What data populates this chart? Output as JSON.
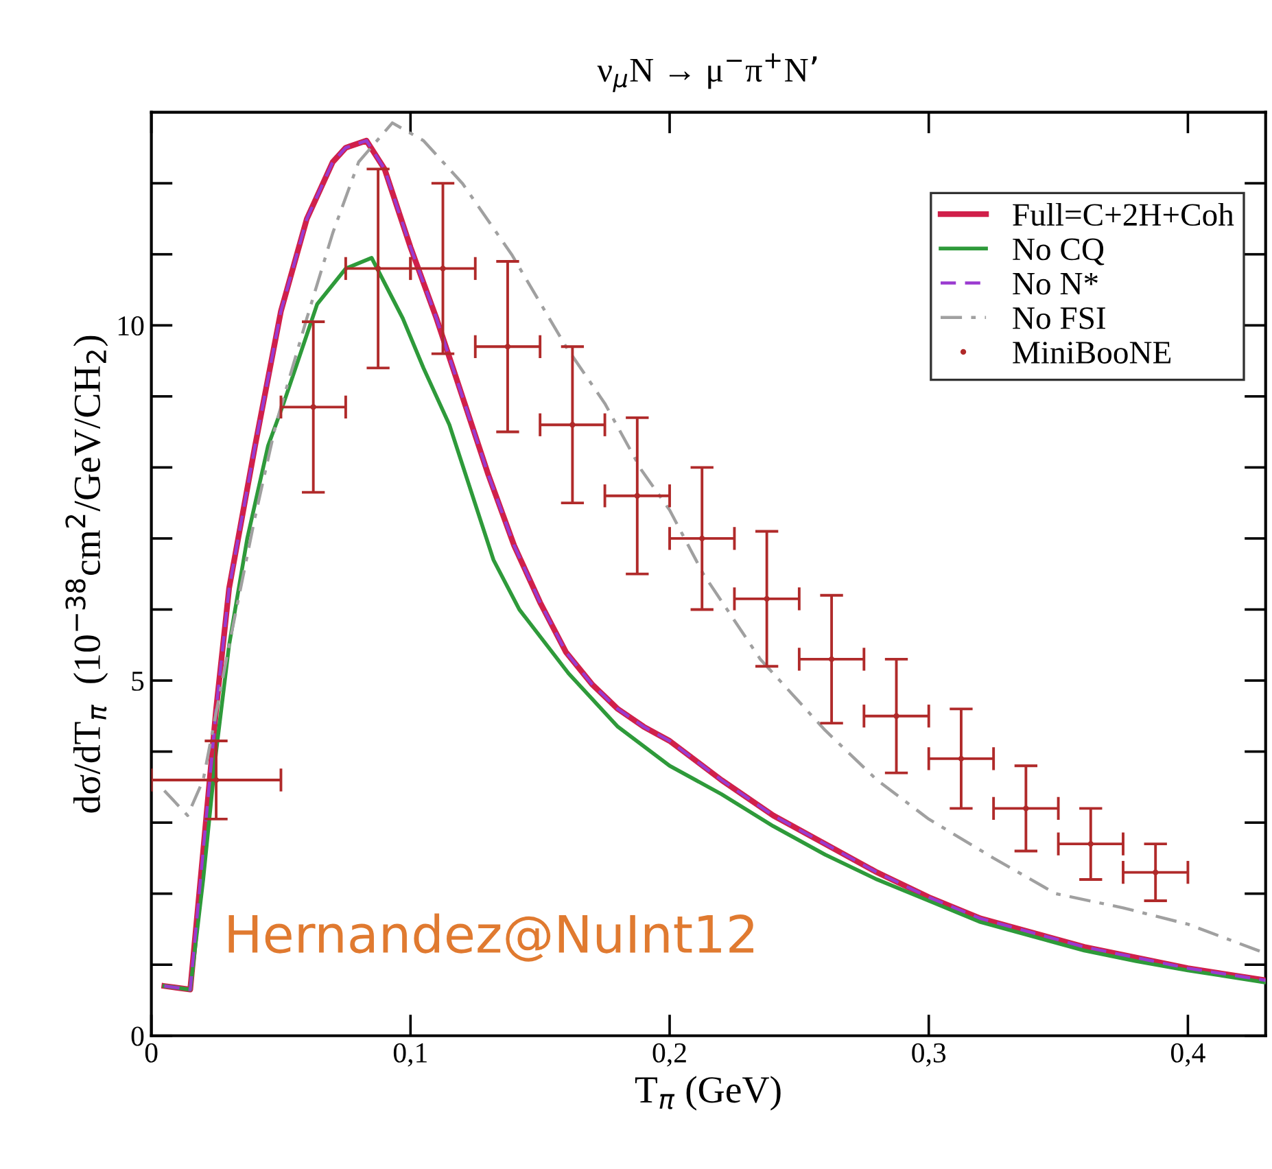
{
  "chart_data": {
    "type": "line",
    "title": "ν$_{μ}$N → μ$^{−}$π$^{+}$N’",
    "xlabel": "T$_{π}$ (GeV)",
    "ylabel": "dσ/dT$_{π}$  (10$^{−38}$cm$^{2}$/GeV/CH$_{2}$)",
    "xlim": [
      0,
      0.43
    ],
    "xticks": [
      0,
      {
        "value": 0.1,
        "label": "0,1"
      },
      {
        "value": 0.2,
        "label": "0,2"
      },
      {
        "value": 0.3,
        "label": "0,3"
      },
      {
        "value": 0.4,
        "label": "0,4"
      }
    ],
    "ylim": [
      0,
      13
    ],
    "yticks": [
      0,
      {
        "value": 1,
        "label": null
      },
      {
        "value": 2,
        "label": null
      },
      {
        "value": 3,
        "label": null
      },
      {
        "value": 4,
        "label": null
      },
      5,
      {
        "value": 6,
        "label": null
      },
      {
        "value": 7,
        "label": null
      },
      {
        "value": 8,
        "label": null
      },
      {
        "value": 9,
        "label": null
      },
      10,
      {
        "value": 11,
        "label": null
      },
      {
        "value": 12,
        "label": null
      }
    ],
    "grid": false,
    "legend": "top right",
    "annotations": [
      "Hernandez@NuInt12"
    ],
    "series": [
      {
        "name": "Full=C+2H+Coh",
        "line_style": "solid",
        "color": "#d0204a",
        "x": [
          0.005,
          0.015,
          0.02,
          0.025,
          0.03,
          0.04,
          0.05,
          0.06,
          0.07,
          0.075,
          0.083,
          0.09,
          0.1,
          0.11,
          0.12,
          0.13,
          0.14,
          0.15,
          0.16,
          0.17,
          0.18,
          0.19,
          0.2,
          0.22,
          0.24,
          0.26,
          0.28,
          0.3,
          0.32,
          0.34,
          0.36,
          0.38,
          0.4,
          0.43
        ],
        "values": [
          0.7,
          0.65,
          2.6,
          4.6,
          6.3,
          8.3,
          10.2,
          11.5,
          12.3,
          12.5,
          12.6,
          12.2,
          11.1,
          10.1,
          9.0,
          7.9,
          6.9,
          6.1,
          5.4,
          4.95,
          4.6,
          4.35,
          4.15,
          3.6,
          3.1,
          2.7,
          2.3,
          1.95,
          1.65,
          1.45,
          1.25,
          1.1,
          0.95,
          0.78
        ]
      },
      {
        "name": "No CQ",
        "line_style": "solid",
        "color": "#2e9a3a",
        "x": [
          0.005,
          0.015,
          0.02,
          0.025,
          0.03,
          0.037,
          0.045,
          0.051,
          0.064,
          0.075,
          0.085,
          0.097,
          0.105,
          0.115,
          0.132,
          0.142,
          0.161,
          0.18,
          0.2,
          0.22,
          0.24,
          0.26,
          0.28,
          0.3,
          0.32,
          0.34,
          0.36,
          0.38,
          0.4,
          0.43
        ],
        "values": [
          0.7,
          0.65,
          2.2,
          4.0,
          5.5,
          7.0,
          8.3,
          8.9,
          10.3,
          10.8,
          10.95,
          10.1,
          9.4,
          8.6,
          6.7,
          6.0,
          5.1,
          4.35,
          3.8,
          3.4,
          2.95,
          2.55,
          2.2,
          1.9,
          1.6,
          1.4,
          1.2,
          1.05,
          0.92,
          0.75
        ]
      },
      {
        "name": "No N*",
        "line_style": "dashed",
        "color": "#9a3ad0",
        "x": [
          0.005,
          0.015,
          0.02,
          0.025,
          0.03,
          0.04,
          0.05,
          0.06,
          0.07,
          0.075,
          0.083,
          0.09,
          0.1,
          0.11,
          0.12,
          0.13,
          0.14,
          0.15,
          0.16,
          0.17,
          0.18,
          0.19,
          0.2,
          0.22,
          0.24,
          0.26,
          0.28,
          0.3,
          0.32,
          0.34,
          0.36,
          0.38,
          0.4,
          0.43
        ],
        "values": [
          0.7,
          0.65,
          2.6,
          4.6,
          6.3,
          8.3,
          10.2,
          11.5,
          12.3,
          12.5,
          12.6,
          12.2,
          11.1,
          10.1,
          9.0,
          7.9,
          6.9,
          6.1,
          5.4,
          4.95,
          4.6,
          4.35,
          4.15,
          3.6,
          3.1,
          2.7,
          2.3,
          1.95,
          1.65,
          1.45,
          1.25,
          1.1,
          0.95,
          0.78
        ]
      },
      {
        "name": "No FSI",
        "line_style": "dashdot",
        "color": "#a0a0a0",
        "x": [
          0.005,
          0.014,
          0.02,
          0.03,
          0.04,
          0.048,
          0.06,
          0.07,
          0.08,
          0.093,
          0.105,
          0.12,
          0.139,
          0.16,
          0.175,
          0.189,
          0.2,
          0.213,
          0.235,
          0.26,
          0.28,
          0.3,
          0.325,
          0.349,
          0.375,
          0.4,
          0.43
        ],
        "values": [
          3.45,
          3.1,
          3.6,
          5.5,
          7.3,
          8.6,
          10.1,
          11.3,
          12.3,
          12.85,
          12.6,
          12.0,
          11.0,
          9.7,
          8.9,
          7.97,
          7.4,
          6.5,
          5.3,
          4.3,
          3.6,
          3.05,
          2.5,
          2.0,
          1.8,
          1.57,
          1.16
        ]
      },
      {
        "name": "MiniBooNE",
        "type": "scatter",
        "marker": "circle",
        "color": "#b02a2a",
        "x": [
          0.025,
          0.0625,
          0.0875,
          0.1125,
          0.1375,
          0.1625,
          0.1875,
          0.2125,
          0.2375,
          0.2625,
          0.2875,
          0.3125,
          0.3375,
          0.3625,
          0.3875
        ],
        "values": [
          3.6,
          8.85,
          10.8,
          10.8,
          9.7,
          8.6,
          7.6,
          7.0,
          6.15,
          5.3,
          4.5,
          3.9,
          3.2,
          2.7,
          2.3
        ],
        "errors": [
          0.55,
          1.2,
          1.4,
          1.2,
          1.2,
          1.1,
          1.1,
          1.0,
          0.95,
          0.9,
          0.8,
          0.7,
          0.6,
          0.5,
          0.4
        ],
        "xerrors": [
          0.025,
          0.0125,
          0.0125,
          0.0125,
          0.0125,
          0.0125,
          0.0125,
          0.0125,
          0.0125,
          0.0125,
          0.0125,
          0.0125,
          0.0125,
          0.0125,
          0.0125
        ]
      }
    ]
  }
}
